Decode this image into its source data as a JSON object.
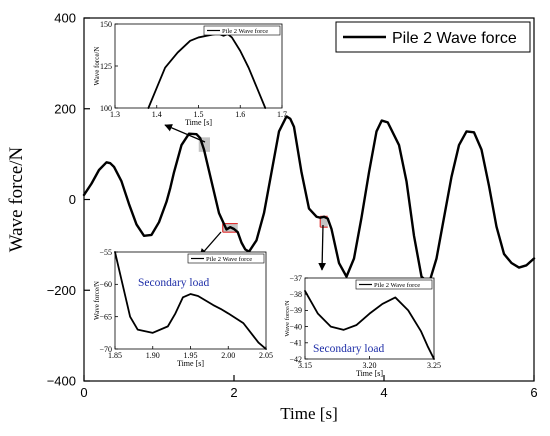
{
  "chart_data": [
    {
      "id": "main",
      "type": "line",
      "xlabel": "Time [s]",
      "ylabel": "Wave force/N",
      "xlim": [
        0,
        6
      ],
      "ylim": [
        -400,
        400
      ],
      "xticks": [
        0,
        2,
        4,
        6
      ],
      "yticks": [
        -400,
        -200,
        0,
        200,
        400
      ],
      "legend": {
        "position": "top-right",
        "entries": [
          "Pile 2 Wave force"
        ]
      },
      "grid": false,
      "series": [
        {
          "name": "Pile 2 Wave force",
          "color": "#000000",
          "x": [
            0.0,
            0.1,
            0.2,
            0.3,
            0.35,
            0.4,
            0.5,
            0.6,
            0.7,
            0.8,
            0.9,
            1.0,
            1.1,
            1.15,
            1.2,
            1.3,
            1.4,
            1.5,
            1.55,
            1.6,
            1.7,
            1.8,
            1.9,
            1.95,
            2.0,
            2.05,
            2.1,
            2.15,
            2.2,
            2.3,
            2.4,
            2.5,
            2.6,
            2.7,
            2.75,
            2.8,
            2.9,
            3.0,
            3.1,
            3.15,
            3.2,
            3.25,
            3.3,
            3.4,
            3.5,
            3.6,
            3.7,
            3.8,
            3.9,
            3.97,
            4.05,
            4.2,
            4.3,
            4.4,
            4.5,
            4.6,
            4.7,
            4.8,
            4.9,
            5.0,
            5.1,
            5.2,
            5.3,
            5.4,
            5.5,
            5.6,
            5.7,
            5.8,
            5.9,
            6.0
          ],
          "y": [
            10,
            35,
            65,
            82,
            80,
            72,
            40,
            -10,
            -55,
            -80,
            -78,
            -50,
            -5,
            25,
            60,
            120,
            145,
            144,
            135,
            110,
            40,
            -30,
            -66,
            -61,
            -65,
            -72,
            -95,
            -110,
            -115,
            -90,
            -30,
            60,
            150,
            183,
            178,
            160,
            60,
            -20,
            -38,
            -40,
            -38,
            -42,
            -65,
            -140,
            -170,
            -130,
            -40,
            60,
            150,
            174,
            170,
            120,
            40,
            -80,
            -170,
            -185,
            -130,
            -40,
            50,
            120,
            150,
            148,
            110,
            30,
            -60,
            -120,
            -140,
            -150,
            -145,
            -130
          ]
        }
      ],
      "highlight_boxes": [
        {
          "x": [
            1.53,
            1.68
          ],
          "y": [
            105,
            137
          ],
          "style": "gray"
        },
        {
          "x": [
            1.85,
            2.05
          ],
          "y": [
            -72,
            -53
          ],
          "style": "red-outline"
        },
        {
          "x": [
            3.15,
            3.25
          ],
          "y": [
            -61,
            -37
          ],
          "style": "red-outline"
        }
      ]
    },
    {
      "id": "inset-top",
      "type": "line",
      "xlabel": "Time [s]",
      "ylabel": "Wave force/N",
      "xlim": [
        1.3,
        1.7
      ],
      "ylim": [
        100,
        150
      ],
      "xticks": [
        1.3,
        1.4,
        1.5,
        1.6,
        1.7
      ],
      "yticks": [
        100,
        125,
        150
      ],
      "legend": {
        "position": "top-right",
        "entries": [
          "Pile 2 Wave force"
        ]
      },
      "series": [
        {
          "name": "Pile 2 Wave force",
          "x": [
            1.38,
            1.4,
            1.42,
            1.45,
            1.48,
            1.5,
            1.52,
            1.54,
            1.55,
            1.56,
            1.57,
            1.58,
            1.6,
            1.62,
            1.64,
            1.66
          ],
          "y": [
            100,
            112,
            124,
            133,
            140,
            142,
            143,
            144,
            144,
            143,
            144,
            142,
            134,
            124,
            112,
            100
          ]
        }
      ]
    },
    {
      "id": "inset-left",
      "type": "line",
      "xlabel": "Time [s]",
      "ylabel": "Wave force/N",
      "xlim": [
        1.85,
        2.05
      ],
      "ylim": [
        -70,
        -55
      ],
      "xticks": [
        1.85,
        1.9,
        1.95,
        2.0,
        2.05
      ],
      "yticks": [
        -70,
        -65,
        -60,
        -55
      ],
      "legend": {
        "position": "top-right",
        "entries": [
          "Pile 2 Wave force"
        ]
      },
      "annotations": [
        "Secondary load"
      ],
      "series": [
        {
          "name": "Pile 2 Wave force",
          "x": [
            1.85,
            1.86,
            1.87,
            1.88,
            1.9,
            1.92,
            1.93,
            1.94,
            1.95,
            1.96,
            1.97,
            1.98,
            1.99,
            2.0,
            2.02,
            2.04,
            2.05
          ],
          "y": [
            -55,
            -60,
            -65,
            -67,
            -67.5,
            -66.5,
            -64.5,
            -62,
            -61.5,
            -61.8,
            -62.5,
            -63.2,
            -63.8,
            -64.5,
            -66,
            -69,
            -70
          ]
        }
      ]
    },
    {
      "id": "inset-right",
      "type": "line",
      "xlabel": "Time [s]",
      "ylabel": "Wave force/N",
      "xlim": [
        3.15,
        3.25
      ],
      "ylim": [
        -42,
        -37
      ],
      "xticks": [
        3.15,
        3.2,
        3.25
      ],
      "yticks": [
        -42,
        -41,
        -40,
        -39,
        -38,
        -37
      ],
      "legend": {
        "position": "top-right",
        "entries": [
          "Pile 2 Wave force"
        ]
      },
      "annotations": [
        "Secondary load"
      ],
      "series": [
        {
          "name": "Pile 2 Wave force",
          "x": [
            3.15,
            3.16,
            3.17,
            3.18,
            3.19,
            3.2,
            3.21,
            3.22,
            3.23,
            3.24,
            3.245,
            3.25
          ],
          "y": [
            -37.8,
            -39.2,
            -40.0,
            -40.2,
            -39.9,
            -39.2,
            -38.6,
            -38.2,
            -39.0,
            -40.3,
            -41.2,
            -42
          ]
        }
      ]
    }
  ]
}
